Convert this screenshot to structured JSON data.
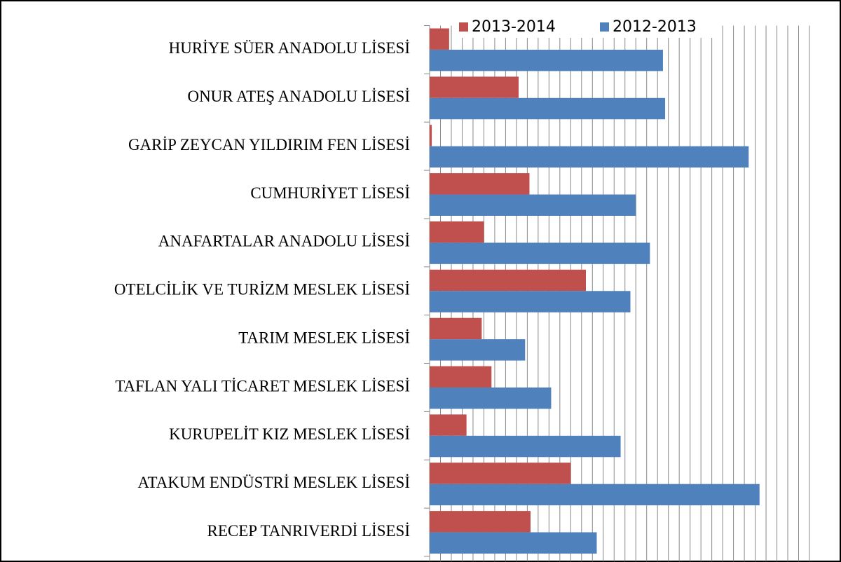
{
  "chart_data": {
    "type": "barh",
    "categories": [
      "HURİYE SÜER ANADOLU LİSESİ",
      "ONUR ATEŞ ANADOLU LİSESİ",
      "GARİP ZEYCAN YILDIRIM FEN LİSESİ",
      "CUMHURİYET LİSESİ",
      "ANAFARTALAR ANADOLU LİSESİ",
      "OTELCİLİK VE TURİZM MESLEK LİSESİ",
      "TARIM MESLEK LİSESİ",
      "TAFLAN YALI TİCARET MESLEK LİSESİ",
      "KURUPELİT KIZ MESLEK LİSESİ",
      "ATAKUM ENDÜSTRİ MESLEK LİSESİ",
      "RECEP TANRIVERDİ LİSESİ"
    ],
    "series": [
      {
        "name": "2013-2014",
        "color": "#c0504d",
        "values": [
          1.8,
          8.2,
          0.2,
          9.2,
          5.0,
          14.4,
          4.8,
          5.7,
          3.4,
          13.0,
          9.3
        ]
      },
      {
        "name": "2012-2013",
        "color": "#4f81bd",
        "values": [
          21.5,
          21.7,
          29.4,
          19.0,
          20.3,
          18.5,
          8.8,
          11.2,
          17.6,
          30.4,
          15.4
        ]
      }
    ],
    "xlim": [
      0,
      35
    ],
    "xticks": [
      0,
      1,
      2,
      3,
      4,
      5,
      6,
      7,
      8,
      9,
      10,
      11,
      12,
      13,
      14,
      15,
      16,
      17,
      18,
      19,
      20,
      21,
      22,
      23,
      24,
      25,
      26,
      27,
      28,
      29,
      30,
      31,
      32,
      33,
      34,
      35
    ],
    "grid": true,
    "legend": "top"
  }
}
